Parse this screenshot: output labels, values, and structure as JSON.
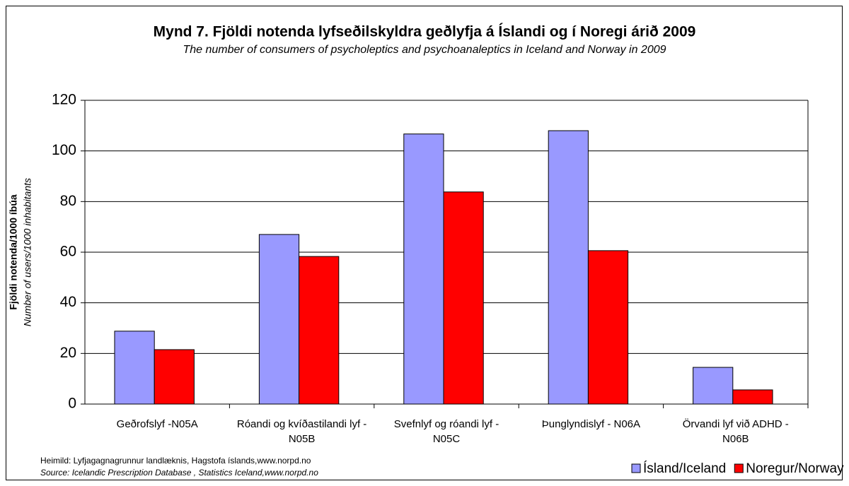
{
  "chart_data": {
    "type": "bar",
    "title": "Mynd 7.  Fjöldi notenda lyfseðilskyldra geðlyfja á Íslandi og í Noregi árið 2009",
    "subtitle": "The number of consumers of psycholeptics and psychoanaleptics in Iceland and Norway in 2009",
    "y_label": "Fjöldi notenda/1000 íbúa",
    "y_label_en": "Number of users/1000 inhabitants",
    "source": "Heimild: Lyfjagagnagrunnur landlæknis, Hagstofa íslands,www.norpd.no",
    "source_en": "Source: Icelandic Prescription Database , Statistics Iceland,www.norpd.no",
    "categories": [
      "Geðrofslyf -N05A",
      "Róandi og kvíðastilandi lyf - N05B",
      "Svefnlyf  og róandi lyf - N05C",
      "Þunglyndislyf - N06A",
      "Örvandi lyf við ADHD - N06B"
    ],
    "series": [
      {
        "name": "Ísland/Iceland",
        "color": "#9999ff",
        "values": [
          28.8,
          67,
          106.7,
          108,
          14.5
        ]
      },
      {
        "name": "Noregur/Norway",
        "color": "#ff0000",
        "values": [
          21.5,
          58.3,
          83.8,
          60.6,
          5.6
        ]
      }
    ],
    "ylim": [
      0,
      120
    ],
    "yticks": [
      0,
      20,
      40,
      60,
      80,
      100,
      120
    ],
    "grid": true,
    "legend": "bottom-right"
  }
}
